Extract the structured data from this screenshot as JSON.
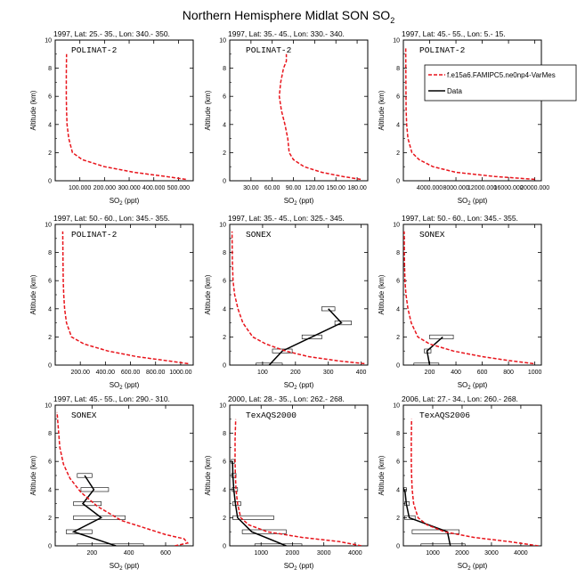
{
  "page_title": "Northern Hemisphere Midlat SON SO",
  "page_title_sub": "2",
  "xlabel_main": "SO",
  "xlabel_sub": "2",
  "xlabel_unit": " (ppt)",
  "ylabel": "Altitude (km)",
  "legend": {
    "model": "f.e15a6.FAMIPC5.ne0np4-VarMes",
    "data": "Data"
  },
  "colors": {
    "model": "#e8141b",
    "data": "#000000"
  },
  "chart_data": [
    {
      "type": "line",
      "title": "1997, Lat: 25.- 35., Lon: 340.- 350.",
      "campaign": "POLINAT-2",
      "xlim": [
        0,
        560000
      ],
      "ylim": [
        0,
        10
      ],
      "xticks": [
        100000,
        200000,
        300000,
        400000,
        500000
      ],
      "xtick_labels": [
        "100.000",
        "200.000",
        "300.000",
        "400.000",
        "500.000"
      ],
      "yticks": [
        0,
        2,
        4,
        6,
        8,
        10
      ],
      "ytick_labels": [
        "0",
        "2",
        "4",
        "6",
        "8",
        "10"
      ],
      "model": {
        "x": [
          530000,
          450000,
          320000,
          200000,
          110000,
          70000,
          55000,
          48000,
          46000,
          45000,
          45000,
          46000
        ],
        "y": [
          0.1,
          0.3,
          0.6,
          1.0,
          1.5,
          2.0,
          3.0,
          4.0,
          5.0,
          6.0,
          7.5,
          9.0
        ]
      },
      "data": null
    },
    {
      "type": "line",
      "title": "1997, Lat: 35.- 45., Lon: 330.- 340.",
      "campaign": "POLINAT-2",
      "xlim": [
        0,
        195
      ],
      "ylim": [
        0,
        10
      ],
      "xticks": [
        30,
        60,
        90,
        120,
        150,
        180
      ],
      "xtick_labels": [
        "30.00",
        "60.00",
        "90.00",
        "120.00",
        "150.00",
        "180.00"
      ],
      "yticks": [
        0,
        2,
        4,
        6,
        8,
        10
      ],
      "ytick_labels": [
        "0",
        "2",
        "4",
        "6",
        "8",
        "10"
      ],
      "model": {
        "x": [
          185,
          160,
          130,
          105,
          90,
          84,
          82,
          78,
          73,
          70,
          72,
          76,
          80,
          80
        ],
        "y": [
          0.1,
          0.3,
          0.6,
          1.0,
          1.5,
          2.0,
          3.0,
          4.0,
          5.0,
          6.0,
          7.0,
          8.0,
          8.5,
          9.0
        ]
      },
      "data": null
    },
    {
      "type": "line",
      "title": "1997, Lat: 45.- 55., Lon: 5.- 15.",
      "campaign": "POLINAT-2",
      "xlim": [
        0,
        21000
      ],
      "ylim": [
        0,
        10
      ],
      "xticks": [
        4000,
        8000,
        12000,
        16000,
        20000
      ],
      "xtick_labels": [
        "4000.000",
        "8000.000",
        "12000.000",
        "16000.000",
        "20000.000"
      ],
      "yticks": [
        0,
        2,
        4,
        6,
        8,
        10
      ],
      "ytick_labels": [
        "0",
        "2",
        "4",
        "6",
        "8",
        "10"
      ],
      "model": {
        "x": [
          20000,
          14000,
          8000,
          4500,
          2400,
          1300,
          700,
          500,
          420,
          400,
          380,
          360
        ],
        "y": [
          0.1,
          0.3,
          0.6,
          1.0,
          1.5,
          2.0,
          3.0,
          4.0,
          5.0,
          6.0,
          7.5,
          9.5
        ]
      },
      "data": null
    },
    {
      "type": "line",
      "title": "1997, Lat: 50.- 60., Lon: 345.- 355.",
      "campaign": "POLINAT-2",
      "xlim": [
        0,
        1100
      ],
      "ylim": [
        0,
        10
      ],
      "xticks": [
        200,
        400,
        600,
        800,
        1000
      ],
      "xtick_labels": [
        "200.00",
        "400.00",
        "600.00",
        "800.00",
        "1000.00"
      ],
      "yticks": [
        0,
        2,
        4,
        6,
        8,
        10
      ],
      "ytick_labels": [
        "0",
        "2",
        "4",
        "6",
        "8",
        "10"
      ],
      "model": {
        "x": [
          1060,
          900,
          650,
          420,
          230,
          130,
          90,
          75,
          68,
          64,
          62,
          60
        ],
        "y": [
          0.1,
          0.3,
          0.6,
          1.0,
          1.5,
          2.0,
          3.0,
          4.0,
          5.0,
          6.0,
          7.5,
          9.5
        ]
      },
      "data": null
    },
    {
      "type": "line",
      "title": "1997, Lat: 35.- 45., Lon: 325.- 345.",
      "campaign": "SONEX",
      "xlim": [
        0,
        420
      ],
      "ylim": [
        0,
        10
      ],
      "xticks": [
        100,
        200,
        300,
        400
      ],
      "xtick_labels": [
        "100",
        "200",
        "300",
        "400"
      ],
      "yticks": [
        0,
        2,
        4,
        6,
        8,
        10
      ],
      "ytick_labels": [
        "0",
        "2",
        "4",
        "6",
        "8",
        "10"
      ],
      "model": {
        "x": [
          410,
          330,
          240,
          170,
          110,
          70,
          40,
          25,
          15,
          10,
          8,
          7
        ],
        "y": [
          0.1,
          0.3,
          0.6,
          1.0,
          1.5,
          2.0,
          3.0,
          4.0,
          5.0,
          6.0,
          7.5,
          9.5
        ]
      },
      "data": {
        "x": [
          120,
          160,
          250,
          340,
          300
        ],
        "y": [
          0,
          1,
          2,
          3,
          4
        ],
        "xmin": [
          80,
          130,
          220,
          320,
          280
        ],
        "xmax": [
          160,
          190,
          280,
          370,
          320
        ]
      }
    },
    {
      "type": "line",
      "title": "1997, Lat: 50.- 60., Lon: 345.- 355.",
      "campaign": "SONEX",
      "xlim": [
        0,
        1050
      ],
      "ylim": [
        0,
        10
      ],
      "xticks": [
        200,
        400,
        600,
        800,
        1000
      ],
      "xtick_labels": [
        "200",
        "400",
        "600",
        "800",
        "1000"
      ],
      "yticks": [
        0,
        2,
        4,
        6,
        8,
        10
      ],
      "ytick_labels": [
        "0",
        "2",
        "4",
        "6",
        "8",
        "10"
      ],
      "model": {
        "x": [
          990,
          820,
          600,
          380,
          200,
          110,
          60,
          35,
          20,
          12,
          8,
          6
        ],
        "y": [
          0.1,
          0.3,
          0.6,
          1.0,
          1.5,
          2.0,
          3.0,
          4.0,
          5.0,
          6.0,
          7.5,
          9.5
        ]
      },
      "data": {
        "x": [
          200,
          180,
          300
        ],
        "y": [
          0,
          1,
          2
        ],
        "xmin": [
          80,
          160,
          200
        ],
        "xmax": [
          270,
          210,
          380
        ]
      }
    },
    {
      "type": "line",
      "title": "1997, Lat: 45.- 55., Lon: 290.- 310.",
      "campaign": "SONEX",
      "xlim": [
        0,
        750
      ],
      "ylim": [
        0,
        10
      ],
      "xticks": [
        200,
        400,
        600
      ],
      "xtick_labels": [
        "200",
        "400",
        "600"
      ],
      "yticks": [
        0,
        2,
        4,
        6,
        8,
        10
      ],
      "ytick_labels": [
        "0",
        "2",
        "4",
        "6",
        "8",
        "10"
      ],
      "model": {
        "x": [
          650,
          720,
          700,
          600,
          480,
          360,
          230,
          140,
          80,
          45,
          25,
          10
        ],
        "y": [
          0.0,
          0.2,
          0.5,
          0.8,
          1.3,
          1.8,
          2.8,
          3.8,
          4.8,
          5.8,
          7.0,
          9.5
        ]
      },
      "data": {
        "x": [
          330,
          100,
          250,
          150,
          210,
          160
        ],
        "y": [
          0,
          1,
          2,
          3,
          4,
          5
        ],
        "xmin": [
          120,
          60,
          100,
          100,
          140,
          120
        ],
        "xmax": [
          480,
          200,
          380,
          250,
          290,
          200
        ]
      }
    },
    {
      "type": "line",
      "title": "2000, Lat: 28.- 35., Lon: 262.- 268.",
      "campaign": "TexAQS2000",
      "xlim": [
        0,
        4400
      ],
      "ylim": [
        0,
        10
      ],
      "xticks": [
        1000,
        2000,
        3000,
        4000
      ],
      "xtick_labels": [
        "1000",
        "2000",
        "3000",
        "4000"
      ],
      "yticks": [
        0,
        2,
        4,
        6,
        8,
        10
      ],
      "ytick_labels": [
        "0",
        "2",
        "4",
        "6",
        "8",
        "10"
      ],
      "model": {
        "x": [
          4200,
          3500,
          2300,
          1200,
          600,
          350,
          250,
          200,
          180,
          170,
          170,
          190
        ],
        "y": [
          0.0,
          0.3,
          0.6,
          1.0,
          1.5,
          2.0,
          3.0,
          4.0,
          5.0,
          6.0,
          7.5,
          9.0
        ]
      },
      "data": {
        "x": [
          1800,
          700,
          250,
          180,
          130,
          100,
          90
        ],
        "y": [
          0,
          1,
          2,
          3,
          4,
          5,
          6
        ],
        "xmin": [
          800,
          400,
          100,
          100,
          80,
          60,
          50
        ],
        "xmax": [
          2300,
          1800,
          1400,
          350,
          250,
          200,
          150
        ]
      }
    },
    {
      "type": "line",
      "title": "2006, Lat: 27.- 34., Lon: 260.- 268.",
      "campaign": "TexAQS2006",
      "xlim": [
        0,
        4700
      ],
      "ylim": [
        0,
        10
      ],
      "xticks": [
        1000,
        2000,
        3000,
        4000
      ],
      "xtick_labels": [
        "1000",
        "2000",
        "3000",
        "4000"
      ],
      "yticks": [
        0,
        2,
        4,
        6,
        8,
        10
      ],
      "ytick_labels": [
        "0",
        "2",
        "4",
        "6",
        "8",
        "10"
      ],
      "model": {
        "x": [
          4600,
          3600,
          2400,
          1400,
          800,
          500,
          350,
          300,
          280,
          270,
          270,
          280
        ],
        "y": [
          0.0,
          0.3,
          0.6,
          1.0,
          1.5,
          2.0,
          3.0,
          4.0,
          5.0,
          6.0,
          7.5,
          9.0
        ]
      },
      "data": {
        "x": [
          1600,
          1500,
          200,
          100,
          50
        ],
        "y": [
          0,
          1,
          2,
          3,
          4
        ],
        "xmin": [
          600,
          300,
          50,
          50,
          20
        ],
        "xmax": [
          2100,
          1900,
          400,
          200,
          100
        ]
      }
    }
  ]
}
